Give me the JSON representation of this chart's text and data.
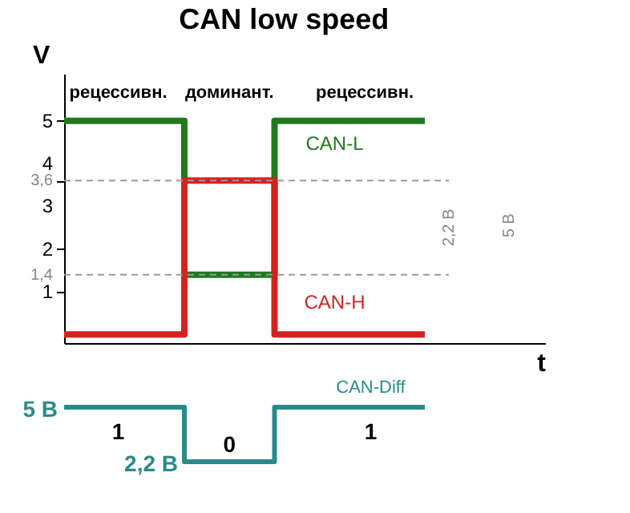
{
  "chart_data": [
    {
      "type": "step",
      "title": "CAN low speed",
      "xlabel": "t",
      "ylabel": "V",
      "categories": [
        null,
        null,
        null,
        null,
        null,
        null,
        null,
        null,
        null,
        null,
        null,
        null,
        null,
        null,
        null,
        null,
        null
      ],
      "series": [
        {
          "name": "CAN-L",
          "color": "#1f7a1f",
          "values": [
            5,
            5,
            5,
            5,
            1.4,
            1.4,
            1.4,
            5,
            5,
            5,
            5,
            5,
            5,
            null,
            null,
            null,
            null
          ]
        },
        {
          "name": "CAN-H",
          "color": "#d42222",
          "values": [
            0,
            0,
            0,
            0,
            3.6,
            3.6,
            3.6,
            0,
            0,
            0,
            0,
            0,
            0,
            null,
            null,
            null,
            null
          ]
        }
      ],
      "ylim": [
        -0.2,
        6.1
      ],
      "yticks": [
        1,
        {
          "value": 1.4,
          "label": "1,4"
        },
        2,
        3,
        {
          "value": 3.6,
          "label": "3,6"
        },
        4,
        5
      ],
      "ref_lines": [
        {
          "axis": "y",
          "value": 3.6,
          "color": "#999999",
          "line_style": "dashed"
        },
        {
          "axis": "y",
          "value": 1.4,
          "color": "#999999",
          "line_style": "dashed"
        }
      ],
      "annotations": [
        "рецессивн.",
        "доминант.",
        "рецессивн.",
        "2,2 В",
        "5 В"
      ],
      "tick_labels": "y"
    },
    {
      "type": "step",
      "categories": [
        null,
        null,
        null,
        null,
        null,
        null,
        null,
        null,
        null,
        null,
        null,
        null,
        null,
        null,
        null,
        null,
        null
      ],
      "series": [
        {
          "name": "CAN-Diff",
          "color": "#2a8a8a",
          "values": [
            5,
            5,
            5,
            5,
            2.2,
            2.2,
            2.2,
            5,
            5,
            5,
            5,
            5,
            5,
            null,
            null,
            null,
            null
          ],
          "value_labels": [
            "5 В",
            null,
            null,
            null,
            "2,2 В",
            null,
            null,
            null,
            null,
            null,
            null,
            null,
            null,
            null,
            null,
            null,
            null
          ]
        }
      ],
      "annotations": [
        "1",
        "0",
        "1"
      ],
      "tick_labels": false
    }
  ]
}
